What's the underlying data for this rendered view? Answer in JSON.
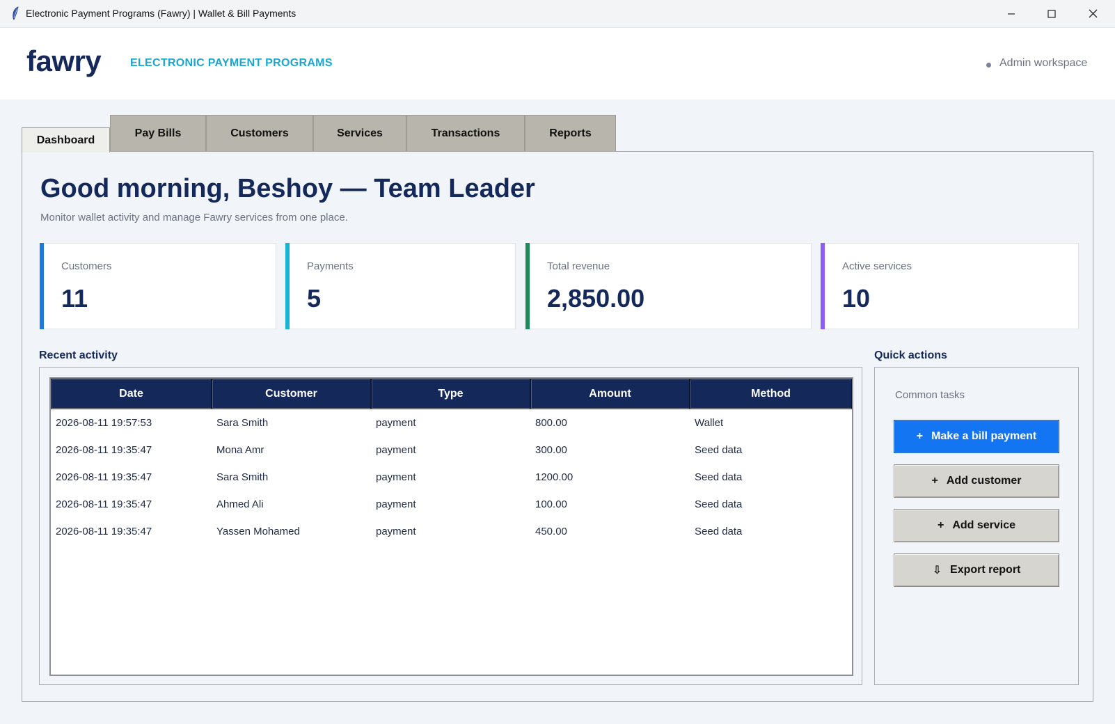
{
  "window": {
    "title": "Electronic Payment Programs (Fawry) | Wallet & Bill Payments",
    "min_icon": "minimize-icon",
    "max_icon": "maximize-icon",
    "close_icon": "close-icon"
  },
  "header": {
    "logo": "fawry",
    "tagline": "ELECTRONIC PAYMENT PROGRAMS",
    "workspace": "Admin workspace"
  },
  "tabs": [
    {
      "label": "Dashboard",
      "active": true
    },
    {
      "label": "Pay Bills"
    },
    {
      "label": "Customers"
    },
    {
      "label": "Services"
    },
    {
      "label": "Transactions"
    },
    {
      "label": "Reports"
    }
  ],
  "dashboard": {
    "greeting": "Good morning, Beshoy — Team Leader",
    "subtitle": "Monitor wallet activity and manage Fawry services from one place.",
    "stats": [
      {
        "label": "Customers",
        "value": "11",
        "color": "#1f7ae0"
      },
      {
        "label": "Payments",
        "value": "5",
        "color": "#19b3d6"
      },
      {
        "label": "Total revenue",
        "value": "2,850.00",
        "color": "#1e8a5a"
      },
      {
        "label": "Active services",
        "value": "10",
        "color": "#8b5cf6"
      }
    ]
  },
  "recent_activity": {
    "title": "Recent activity",
    "columns": [
      "Date",
      "Customer",
      "Type",
      "Amount",
      "Method"
    ],
    "rows": [
      [
        "2026-08-11 19:57:53",
        "Sara Smith",
        "payment",
        "800.00",
        "Wallet"
      ],
      [
        "2026-08-11 19:35:47",
        "Mona Amr",
        "payment",
        "300.00",
        "Seed data"
      ],
      [
        "2026-08-11 19:35:47",
        "Sara Smith",
        "payment",
        "1200.00",
        "Seed data"
      ],
      [
        "2026-08-11 19:35:47",
        "Ahmed Ali",
        "payment",
        "100.00",
        "Seed data"
      ],
      [
        "2026-08-11 19:35:47",
        "Yassen Mohamed",
        "payment",
        "450.00",
        "Seed data"
      ]
    ]
  },
  "quick_actions": {
    "title": "Quick actions",
    "subtitle": "Common tasks",
    "buttons": [
      {
        "icon": "+",
        "label": "Make a bill payment",
        "primary": true
      },
      {
        "icon": "+",
        "label": "Add customer"
      },
      {
        "icon": "+",
        "label": "Add service"
      },
      {
        "icon": "⇩",
        "label": "Export report"
      }
    ]
  },
  "colors": {
    "accent": "#1475f2",
    "navy": "#14285a",
    "cyan": "#1ba6d0"
  }
}
